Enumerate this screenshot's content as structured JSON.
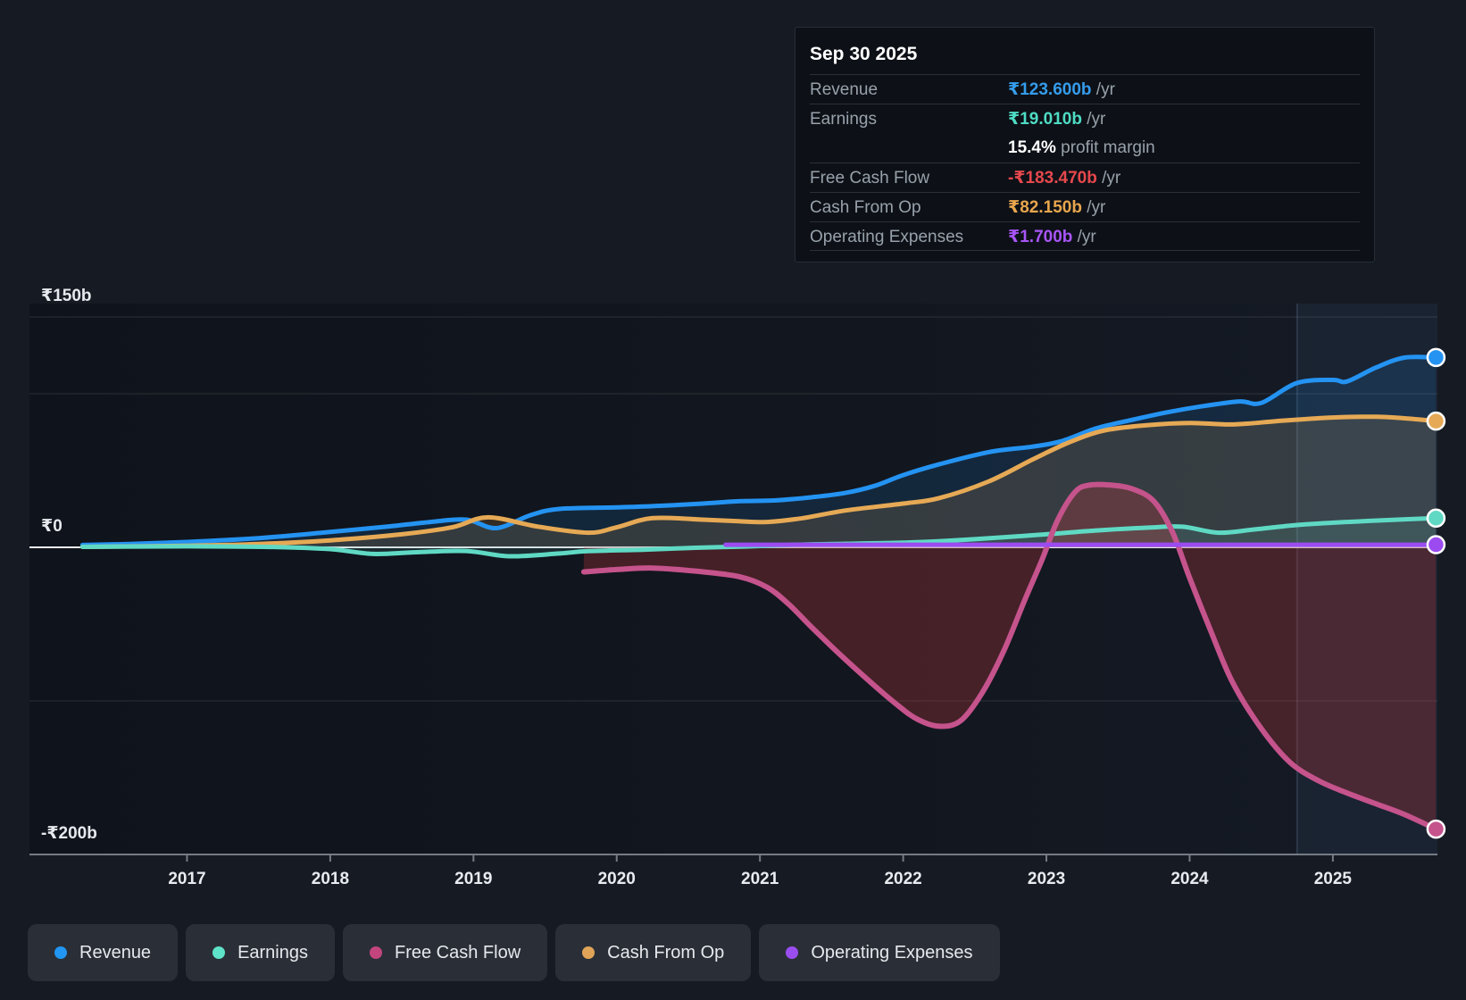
{
  "tooltip": {
    "title": "Sep 30 2025",
    "rows": [
      {
        "label": "Revenue",
        "value": "₹123.600b",
        "suffix": " /yr",
        "color": "#359ceb",
        "sep": true
      },
      {
        "label": "Earnings",
        "value": "₹19.010b",
        "suffix": " /yr",
        "color": "#4edcc4",
        "sep": true
      },
      {
        "label": "",
        "value": "15.4%",
        "suffix": " profit margin",
        "color": "#ffffff",
        "sep": false
      },
      {
        "label": "Free Cash Flow",
        "value": "-₹183.470b",
        "suffix": " /yr",
        "color": "#e5484d",
        "sep": true
      },
      {
        "label": "Cash From Op",
        "value": "₹82.150b",
        "suffix": " /yr",
        "color": "#e8a64e",
        "sep": true
      },
      {
        "label": "Operating Expenses",
        "value": "₹1.700b",
        "suffix": " /yr",
        "color": "#a855f7",
        "sep": true,
        "last": true
      }
    ]
  },
  "legend": {
    "items": [
      {
        "label": "Revenue",
        "color": "#2196f3"
      },
      {
        "label": "Earnings",
        "color": "#5fe3c8"
      },
      {
        "label": "Free Cash Flow",
        "color": "#c2457e"
      },
      {
        "label": "Cash From Op",
        "color": "#e0a458"
      },
      {
        "label": "Operating Expenses",
        "color": "#9b4ef0"
      }
    ]
  },
  "chart_data": {
    "type": "line",
    "unit": "₹ billions per year",
    "xlim": [
      2015.9,
      2025.73
    ],
    "ylim": [
      -200,
      158.7
    ],
    "forecast_start": 2024.75,
    "x_ticks": [
      {
        "v": 2017,
        "label": "2017"
      },
      {
        "v": 2018,
        "label": "2018"
      },
      {
        "v": 2019,
        "label": "2019"
      },
      {
        "v": 2020,
        "label": "2020"
      },
      {
        "v": 2021,
        "label": "2021"
      },
      {
        "v": 2022,
        "label": "2022"
      },
      {
        "v": 2023,
        "label": "2023"
      },
      {
        "v": 2024,
        "label": "2024"
      },
      {
        "v": 2025,
        "label": "2025"
      }
    ],
    "y_gridlines": [
      {
        "v": 150,
        "label": "₹150b"
      },
      {
        "v": 100,
        "label": null
      },
      {
        "v": 0,
        "label": "₹0",
        "zero": true
      },
      {
        "v": -100,
        "label": null
      },
      {
        "v": -200,
        "label": "-₹200b",
        "axis": true
      }
    ],
    "series": [
      {
        "name": "Revenue",
        "color": "#2493f2",
        "fill": "rgba(36,147,242,0.14)",
        "width": 5,
        "points": [
          [
            2016.27,
            1.5
          ],
          [
            2016.6,
            2.2
          ],
          [
            2017,
            3.5
          ],
          [
            2017.5,
            6
          ],
          [
            2018,
            10
          ],
          [
            2018.4,
            13.5
          ],
          [
            2018.7,
            16.5
          ],
          [
            2018.95,
            18
          ],
          [
            2019.16,
            12.5
          ],
          [
            2019.4,
            21
          ],
          [
            2019.6,
            25
          ],
          [
            2020,
            26
          ],
          [
            2020.3,
            27
          ],
          [
            2020.6,
            28.5
          ],
          [
            2020.85,
            30
          ],
          [
            2021.1,
            30.5
          ],
          [
            2021.35,
            32.5
          ],
          [
            2021.6,
            35.5
          ],
          [
            2021.8,
            40
          ],
          [
            2022,
            47
          ],
          [
            2022.25,
            54
          ],
          [
            2022.6,
            62
          ],
          [
            2022.9,
            65.5
          ],
          [
            2023.1,
            69
          ],
          [
            2023.35,
            77.5
          ],
          [
            2023.6,
            83
          ],
          [
            2023.85,
            88
          ],
          [
            2024.1,
            92
          ],
          [
            2024.35,
            95
          ],
          [
            2024.5,
            94
          ],
          [
            2024.75,
            107
          ],
          [
            2025,
            109
          ],
          [
            2025.1,
            108
          ],
          [
            2025.3,
            117
          ],
          [
            2025.5,
            123.5
          ],
          [
            2025.72,
            123.6
          ]
        ]
      },
      {
        "name": "Cash From Op",
        "color": "#e6a955",
        "fill": "rgba(230,169,85,0.16)",
        "width": 5,
        "points": [
          [
            2016.27,
            0.3
          ],
          [
            2017,
            1
          ],
          [
            2017.5,
            2.2
          ],
          [
            2018,
            4.5
          ],
          [
            2018.5,
            8.5
          ],
          [
            2018.85,
            13
          ],
          [
            2019.1,
            19.5
          ],
          [
            2019.45,
            13.5
          ],
          [
            2019.8,
            9.5
          ],
          [
            2020,
            13
          ],
          [
            2020.25,
            19
          ],
          [
            2020.6,
            18
          ],
          [
            2020.85,
            17
          ],
          [
            2021.05,
            16.5
          ],
          [
            2021.3,
            19
          ],
          [
            2021.6,
            24
          ],
          [
            2022,
            28.5
          ],
          [
            2022.25,
            32
          ],
          [
            2022.6,
            43
          ],
          [
            2022.9,
            57
          ],
          [
            2023.15,
            68
          ],
          [
            2023.4,
            76
          ],
          [
            2023.7,
            79.5
          ],
          [
            2024,
            81
          ],
          [
            2024.3,
            80
          ],
          [
            2024.65,
            82.5
          ],
          [
            2025,
            84.5
          ],
          [
            2025.3,
            85
          ],
          [
            2025.5,
            84
          ],
          [
            2025.72,
            82.15
          ]
        ]
      },
      {
        "name": "Earnings",
        "color": "#5fd9c4",
        "fill": "rgba(95,217,196,0.12)",
        "width": 5,
        "points": [
          [
            2016.27,
            0.3
          ],
          [
            2017,
            0.6
          ],
          [
            2017.6,
            0.2
          ],
          [
            2018,
            -1.2
          ],
          [
            2018.3,
            -4.3
          ],
          [
            2018.6,
            -3.2
          ],
          [
            2018.95,
            -2.4
          ],
          [
            2019.25,
            -5.8
          ],
          [
            2019.6,
            -4
          ],
          [
            2019.8,
            -2.5
          ],
          [
            2020.2,
            -1.5
          ],
          [
            2020.55,
            -0.3
          ],
          [
            2020.9,
            0.5
          ],
          [
            2021.25,
            1.7
          ],
          [
            2021.6,
            2.3
          ],
          [
            2022,
            3
          ],
          [
            2022.3,
            4.2
          ],
          [
            2022.7,
            6.5
          ],
          [
            2023,
            8.5
          ],
          [
            2023.35,
            11
          ],
          [
            2023.7,
            12.8
          ],
          [
            2023.95,
            13.4
          ],
          [
            2024.2,
            9.5
          ],
          [
            2024.45,
            11.6
          ],
          [
            2024.75,
            14.5
          ],
          [
            2025.1,
            16.5
          ],
          [
            2025.4,
            17.8
          ],
          [
            2025.72,
            19
          ]
        ]
      },
      {
        "name": "Free Cash Flow",
        "color": "#c5538c",
        "fill": "rgba(190,55,60,0.30)",
        "width": 6,
        "points": [
          [
            2019.77,
            -16
          ],
          [
            2020,
            -14.5
          ],
          [
            2020.25,
            -13.5
          ],
          [
            2020.55,
            -15.5
          ],
          [
            2020.85,
            -19
          ],
          [
            2021.05,
            -26
          ],
          [
            2021.2,
            -37
          ],
          [
            2021.35,
            -51
          ],
          [
            2021.55,
            -69
          ],
          [
            2021.75,
            -86
          ],
          [
            2021.95,
            -102
          ],
          [
            2022.1,
            -112
          ],
          [
            2022.25,
            -116.5
          ],
          [
            2022.4,
            -113
          ],
          [
            2022.55,
            -95
          ],
          [
            2022.7,
            -68
          ],
          [
            2022.85,
            -34
          ],
          [
            2022.97,
            -8
          ],
          [
            2023.08,
            18
          ],
          [
            2023.2,
            36
          ],
          [
            2023.3,
            40.5
          ],
          [
            2023.45,
            40.5
          ],
          [
            2023.6,
            38
          ],
          [
            2023.75,
            30
          ],
          [
            2023.88,
            10
          ],
          [
            2024,
            -20
          ],
          [
            2024.15,
            -55
          ],
          [
            2024.3,
            -88
          ],
          [
            2024.5,
            -118
          ],
          [
            2024.7,
            -140
          ],
          [
            2024.9,
            -152
          ],
          [
            2025.1,
            -160
          ],
          [
            2025.3,
            -167
          ],
          [
            2025.5,
            -174
          ],
          [
            2025.72,
            -183.5
          ]
        ]
      },
      {
        "name": "Operating Expenses",
        "color": "#9b4bf0",
        "fill": null,
        "width": 5,
        "points": [
          [
            2020.76,
            1.7
          ],
          [
            2021.5,
            1.7
          ],
          [
            2022.5,
            1.7
          ],
          [
            2023.5,
            1.7
          ],
          [
            2024.5,
            1.7
          ],
          [
            2025.72,
            1.7
          ]
        ]
      }
    ]
  }
}
